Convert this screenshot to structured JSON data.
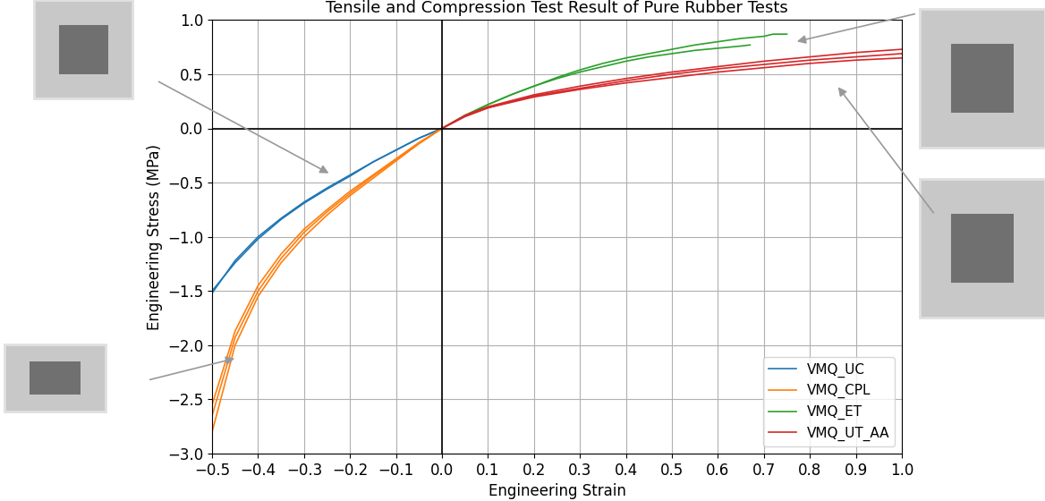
{
  "chart_data": {
    "type": "line",
    "title": "Tensile and Compression Test Result of Pure Rubber Tests",
    "x_label": "Engineering Strain",
    "y_label": "Engineering Stress (MPa)",
    "xlim": [
      -0.5,
      1.0
    ],
    "xticks": [
      {
        "value": -0.5,
        "label": "−0.5"
      },
      {
        "value": -0.4,
        "label": "−0.4"
      },
      {
        "value": -0.3,
        "label": "−0.3"
      },
      {
        "value": -0.2,
        "label": "−0.2"
      },
      {
        "value": -0.1,
        "label": "−0.1"
      },
      0.0,
      0.1,
      0.2,
      0.3,
      0.4,
      0.5,
      0.6,
      0.7,
      0.8,
      0.9,
      1.0
    ],
    "ylim": [
      -3.0,
      1.0
    ],
    "yticks": [
      {
        "value": -3.0,
        "label": "−3.0"
      },
      {
        "value": -2.5,
        "label": "−2.5"
      },
      {
        "value": -2.0,
        "label": "−2.0"
      },
      {
        "value": -1.5,
        "label": "−1.5"
      },
      {
        "value": -1.0,
        "label": "−1.0"
      },
      {
        "value": -0.5,
        "label": "−0.5"
      },
      0.0,
      0.5,
      1.0
    ],
    "grid": true,
    "legend": "lower right",
    "series": [
      {
        "name": "VMQ_UC",
        "color": "#1f77b4",
        "runs": [
          {
            "x": [
              0,
              -0.05,
              -0.1,
              -0.15,
              -0.2,
              -0.25,
              -0.3,
              -0.35,
              -0.4,
              -0.45,
              -0.5
            ],
            "values": [
              0,
              -0.09,
              -0.2,
              -0.31,
              -0.43,
              -0.55,
              -0.68,
              -0.83,
              -1.0,
              -1.22,
              -1.52
            ]
          },
          {
            "x": [
              0,
              -0.05,
              -0.1,
              -0.15,
              -0.2,
              -0.25,
              -0.3,
              -0.35,
              -0.4,
              -0.45,
              -0.5
            ],
            "values": [
              0,
              -0.09,
              -0.2,
              -0.31,
              -0.44,
              -0.56,
              -0.69,
              -0.84,
              -1.02,
              -1.24,
              -1.5
            ]
          }
        ]
      },
      {
        "name": "VMQ_CPL",
        "color": "#ff7f0e",
        "runs": [
          {
            "x": [
              0,
              -0.05,
              -0.1,
              -0.15,
              -0.2,
              -0.25,
              -0.3,
              -0.35,
              -0.4,
              -0.45,
              -0.5
            ],
            "values": [
              0,
              -0.14,
              -0.3,
              -0.46,
              -0.62,
              -0.8,
              -1.0,
              -1.24,
              -1.55,
              -2.0,
              -2.8
            ]
          },
          {
            "x": [
              0,
              -0.05,
              -0.1,
              -0.15,
              -0.2,
              -0.25,
              -0.3,
              -0.35,
              -0.4,
              -0.45,
              -0.5
            ],
            "values": [
              0,
              -0.14,
              -0.29,
              -0.44,
              -0.6,
              -0.77,
              -0.96,
              -1.2,
              -1.5,
              -1.93,
              -2.65
            ]
          },
          {
            "x": [
              0,
              -0.05,
              -0.1,
              -0.15,
              -0.2,
              -0.25,
              -0.3,
              -0.35,
              -0.4,
              -0.45,
              -0.5
            ],
            "values": [
              0,
              -0.13,
              -0.28,
              -0.43,
              -0.58,
              -0.75,
              -0.93,
              -1.16,
              -1.45,
              -1.87,
              -2.55
            ]
          }
        ]
      },
      {
        "name": "VMQ_ET",
        "color": "#2ca02c",
        "runs": [
          {
            "x": [
              0,
              0.05,
              0.1,
              0.15,
              0.2,
              0.25,
              0.3,
              0.35,
              0.4,
              0.45,
              0.5,
              0.55,
              0.6,
              0.65,
              0.7,
              0.72,
              0.75
            ],
            "values": [
              0,
              0.12,
              0.22,
              0.31,
              0.39,
              0.47,
              0.54,
              0.6,
              0.65,
              0.69,
              0.73,
              0.77,
              0.8,
              0.83,
              0.85,
              0.87,
              0.87
            ]
          },
          {
            "x": [
              0,
              0.05,
              0.1,
              0.15,
              0.2,
              0.25,
              0.3,
              0.35,
              0.4,
              0.45,
              0.5,
              0.55,
              0.6,
              0.65,
              0.67
            ],
            "values": [
              0,
              0.12,
              0.22,
              0.31,
              0.39,
              0.46,
              0.52,
              0.57,
              0.62,
              0.66,
              0.69,
              0.72,
              0.74,
              0.76,
              0.77
            ]
          }
        ]
      },
      {
        "name": "VMQ_UT_AA",
        "color": "#d62728",
        "runs": [
          {
            "x": [
              0,
              0.05,
              0.1,
              0.2,
              0.3,
              0.4,
              0.5,
              0.6,
              0.7,
              0.8,
              0.9,
              1.0
            ],
            "values": [
              0,
              0.12,
              0.2,
              0.31,
              0.39,
              0.46,
              0.52,
              0.57,
              0.62,
              0.66,
              0.7,
              0.73
            ]
          },
          {
            "x": [
              0,
              0.05,
              0.1,
              0.2,
              0.3,
              0.4,
              0.5,
              0.6,
              0.7,
              0.8,
              0.9,
              1.0
            ],
            "values": [
              0,
              0.11,
              0.19,
              0.3,
              0.37,
              0.44,
              0.5,
              0.55,
              0.59,
              0.63,
              0.66,
              0.69
            ]
          },
          {
            "x": [
              0,
              0.05,
              0.1,
              0.2,
              0.3,
              0.4,
              0.5,
              0.6,
              0.7,
              0.8,
              0.9,
              1.0
            ],
            "values": [
              0,
              0.11,
              0.19,
              0.29,
              0.36,
              0.42,
              0.47,
              0.52,
              0.56,
              0.6,
              0.63,
              0.65
            ]
          }
        ]
      }
    ]
  }
}
